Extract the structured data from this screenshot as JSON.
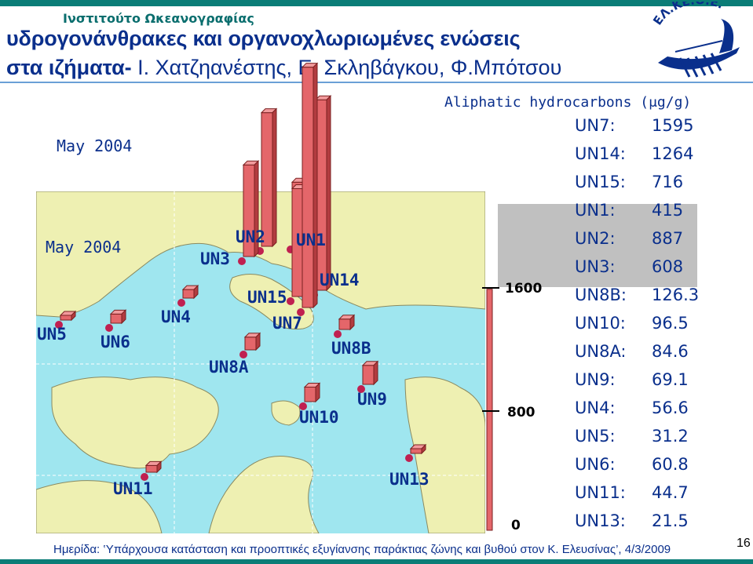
{
  "header": {
    "institute": "Ινστιτούτο Ωκεανογραφίας",
    "title_line1": "υδρογονάνθρακες και οργανοχλωριωμένες ενώσεις",
    "title_line2_bold": "στα ιζήματα-",
    "title_line2_authors": " Ι. Χατζηανέστης, Ε. Σκληβάγκου, Φ.Μπότσου",
    "logo_text": "ΕΛ.ΚΕ.Θ.Ε."
  },
  "chart": {
    "title": "Aliphatic hydrocarbons (μg/g)",
    "date_label": "May 2004",
    "map_date_label": "May 2004",
    "axis_ticks": [
      "1600",
      "800",
      "0"
    ],
    "stations": {
      "UN1": "UN1",
      "UN2": "UN2",
      "UN3": "UN3",
      "UN4": "UN4",
      "UN5": "UN5",
      "UN6": "UN6",
      "UN7": "UN7",
      "UN8A": "UN8A",
      "UN8B": "UN8B",
      "UN9": "UN9",
      "UN10": "UN10",
      "UN11": "UN11",
      "UN13": "UN13",
      "UN14": "UN14",
      "UN15": "UN15"
    }
  },
  "concentrations": [
    {
      "station": "UN7:",
      "value": "1595"
    },
    {
      "station": "UN14:",
      "value": "1264"
    },
    {
      "station": "UN15:",
      "value": "716"
    },
    {
      "station": "UN1:",
      "value": "415"
    },
    {
      "station": "UN2:",
      "value": "887"
    },
    {
      "station": "UN3:",
      "value": "608"
    },
    {
      "station": "UN8B:",
      "value": "126.3"
    },
    {
      "station": "UN10:",
      "value": "96.5"
    },
    {
      "station": "UN8A:",
      "value": "84.6"
    },
    {
      "station": "UN9:",
      "value": "69.1"
    },
    {
      "station": "UN4:",
      "value": "56.6"
    },
    {
      "station": "UN5:",
      "value": "31.2"
    },
    {
      "station": "UN6:",
      "value": "60.8"
    },
    {
      "station": "UN11:",
      "value": "44.7"
    },
    {
      "station": "UN13:",
      "value": "21.5"
    }
  ],
  "footer": {
    "text": "Ημερίδα: ‛Υπάρχουσα κατάσταση και προοπτικές εξυγίανσης παράκτιας ζώνης και βυθού στον Κ. Ελευσίνας’, 4/3/2009",
    "page_number": "16"
  },
  "colors": {
    "title": "#0a2f8c",
    "accent_teal": "#0b7d77",
    "sea": "#9fe6ef",
    "land": "#eef0b2",
    "bar": "#e4666a",
    "station_dot": "#c02050"
  },
  "chart_data": {
    "type": "bar",
    "title": "Aliphatic hydrocarbons (μg/g)",
    "ylim": [
      0,
      1600
    ],
    "categories": [
      "UN7",
      "UN14",
      "UN15",
      "UN1",
      "UN2",
      "UN3",
      "UN8B",
      "UN10",
      "UN8A",
      "UN9",
      "UN4",
      "UN5",
      "UN6",
      "UN11",
      "UN13"
    ],
    "values": [
      1595,
      1264,
      716,
      415,
      887,
      608,
      126.3,
      96.5,
      84.6,
      69.1,
      56.6,
      31.2,
      60.8,
      44.7,
      21.5
    ]
  }
}
